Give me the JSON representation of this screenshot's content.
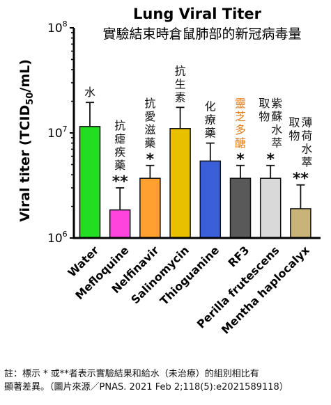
{
  "chart_data": {
    "type": "bar",
    "title": "Lung Viral Titer",
    "subtitle": "實驗結束時倉鼠肺部的新冠病毒量",
    "ylabel": "Viral titer (TCID50/mL)",
    "ylabel_parts": {
      "main": "Viral titer (TCID",
      "sub": "50",
      "end": "/mL)"
    },
    "yscale": "log",
    "ylim": [
      1000000,
      100000000
    ],
    "yticks": [
      {
        "value": 100000000,
        "base": "10",
        "exp": "8"
      },
      {
        "value": 10000000,
        "base": "10",
        "exp": "7"
      },
      {
        "value": 1000000,
        "base": "10",
        "exp": "6"
      }
    ],
    "categories": [
      "Water",
      "Mefloquine",
      "Nelfinavir",
      "Salinomycin",
      "Thioguanine",
      "RF3",
      "Perilla frutescens",
      "Mentha haplocalyx"
    ],
    "values": [
      11500000,
      1850000,
      3700000,
      11000000,
      5400000,
      3700000,
      3700000,
      1900000
    ],
    "error_upper": [
      19500000,
      3000000,
      4900000,
      17500000,
      8000000,
      4900000,
      4900000,
      3200000
    ],
    "colors": [
      "#22dd22",
      "#ff44dd",
      "#ffa030",
      "#e8c000",
      "#3a5fd8",
      "#595959",
      "#d9d9d9",
      "#c8b478"
    ],
    "bar_labels": [
      {
        "text": "水",
        "color": "#111111",
        "mark": ""
      },
      {
        "text": "抗瘧疾藥",
        "color": "#111111",
        "mark": "**"
      },
      {
        "text": "抗愛滋藥",
        "color": "#111111",
        "mark": "*"
      },
      {
        "text": "抗生素",
        "color": "#111111",
        "mark": ""
      },
      {
        "text": "化療藥",
        "color": "#111111",
        "mark": ""
      },
      {
        "text": "靈芝多醣",
        "color": "#e07b1a",
        "mark": "*"
      },
      {
        "text": "紫蘇水萃取物",
        "color": "#111111",
        "mark": "*"
      },
      {
        "text": "薄荷水萃取物",
        "color": "#111111",
        "mark": "**"
      }
    ]
  },
  "footnote": {
    "line1": "註：標示 * 或**者表示實驗結果和給水（未治療）的組別相比有",
    "line2": "顯著差異。（圖片來源／PNAS. 2021 Feb 2;118(5):e2021589118）"
  }
}
